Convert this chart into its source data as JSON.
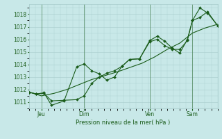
{
  "xlabel": "Pression niveau de la mer( hPa )",
  "bg_color": "#c8e8e8",
  "grid_color": "#a8cccc",
  "line_color": "#1a5c1a",
  "ylim": [
    1010.5,
    1018.8
  ],
  "xlim": [
    0,
    75
  ],
  "xtick_positions": [
    5,
    22,
    48,
    65
  ],
  "xtick_labels": [
    "Jeu",
    "Dim",
    "Ven",
    "Sam"
  ],
  "vline_positions": [
    5,
    22,
    48,
    65
  ],
  "line1_x": [
    0,
    3,
    6,
    9,
    14,
    19,
    22,
    25,
    28,
    31,
    34,
    37,
    40,
    44,
    48,
    51,
    54,
    57,
    60,
    63,
    65,
    68,
    71,
    75
  ],
  "line1_y": [
    1011.8,
    1011.65,
    1011.75,
    1010.75,
    1011.1,
    1013.8,
    1014.05,
    1013.5,
    1013.25,
    1012.75,
    1013.0,
    1013.85,
    1014.4,
    1014.45,
    1015.9,
    1016.25,
    1015.85,
    1015.3,
    1014.9,
    1016.0,
    1017.5,
    1018.5,
    1018.1,
    1017.1
  ],
  "line2_x": [
    0,
    3,
    6,
    9,
    14,
    19,
    22,
    25,
    28,
    31,
    34,
    37,
    40,
    44,
    48,
    51,
    54,
    57,
    60,
    63,
    65,
    68,
    71,
    75
  ],
  "line2_y": [
    1011.8,
    1011.65,
    1011.7,
    1011.1,
    1011.15,
    1011.2,
    1011.5,
    1012.5,
    1013.0,
    1013.3,
    1013.5,
    1013.85,
    1014.4,
    1014.45,
    1015.8,
    1016.0,
    1015.5,
    1015.2,
    1015.2,
    1015.9,
    1017.5,
    1017.75,
    1018.2,
    1017.1
  ],
  "line3_x": [
    0,
    5,
    10,
    15,
    20,
    25,
    30,
    35,
    40,
    45,
    50,
    55,
    60,
    65,
    70,
    75
  ],
  "line3_y": [
    1011.8,
    1011.5,
    1011.7,
    1012.0,
    1012.4,
    1012.8,
    1013.1,
    1013.4,
    1013.75,
    1014.1,
    1014.6,
    1015.2,
    1015.7,
    1016.5,
    1016.9,
    1017.2
  ],
  "figsize": [
    3.2,
    2.0
  ],
  "dpi": 100
}
